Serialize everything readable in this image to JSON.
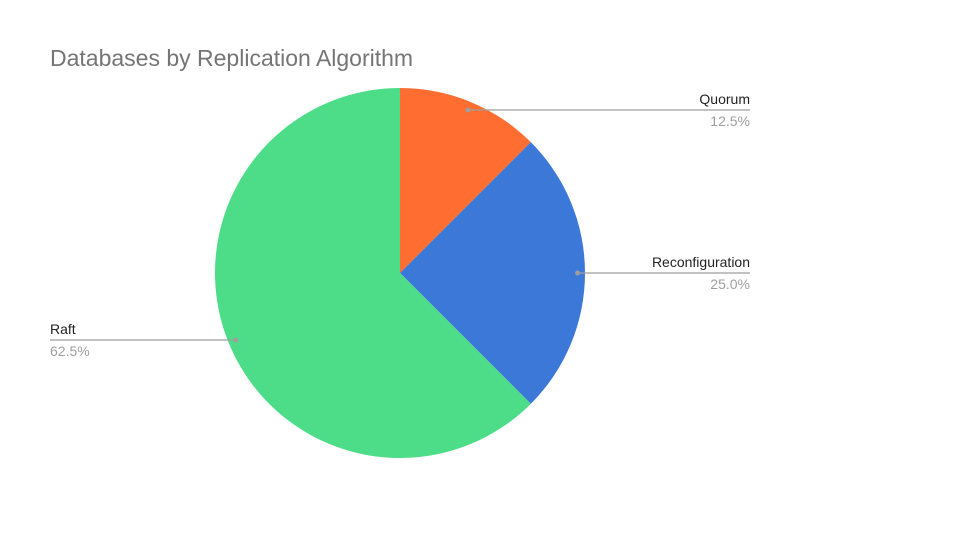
{
  "chart_data": {
    "type": "pie",
    "title": "Databases by Replication Algorithm",
    "legend": "none",
    "slices": [
      {
        "label": "Quorum",
        "value": 12.5,
        "percent_label": "12.5%",
        "color": "#ff6d31"
      },
      {
        "label": "Reconfiguration",
        "value": 25.0,
        "percent_label": "25.0%",
        "color": "#3c78d8"
      },
      {
        "label": "Raft",
        "value": 62.5,
        "percent_label": "62.5%",
        "color": "#4ddd89"
      }
    ]
  }
}
